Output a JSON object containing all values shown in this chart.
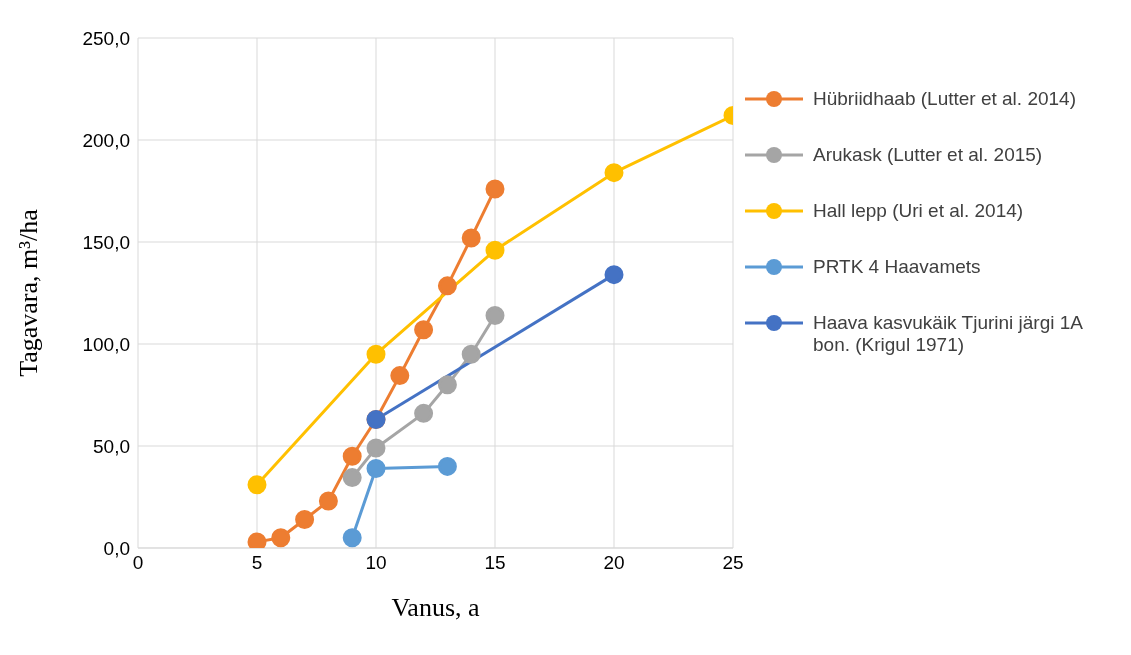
{
  "chart_data": {
    "type": "line",
    "xlabel": "Vanus, a",
    "ylabel": "Tagavara, m³/ha",
    "xlim": [
      0,
      25
    ],
    "xticks": [
      0,
      5,
      10,
      15,
      20,
      25
    ],
    "ylim": [
      0,
      250
    ],
    "yticks": [
      {
        "value": 0,
        "label": "0,0"
      },
      {
        "value": 50,
        "label": "50,0"
      },
      {
        "value": 100,
        "label": "100,0"
      },
      {
        "value": 150,
        "label": "150,0"
      },
      {
        "value": 200,
        "label": "200,0"
      },
      {
        "value": 250,
        "label": "250,0"
      }
    ],
    "grid": true,
    "legend": "right",
    "marker": "circle",
    "line_style": "solid",
    "series": [
      {
        "name": "Hübriidhaab  (Lutter et al. 2014)",
        "color": "#ed7d31",
        "x": [
          5,
          6,
          7,
          8,
          9,
          10,
          11,
          12,
          13,
          14,
          15
        ],
        "values": [
          3,
          5,
          14,
          23,
          45,
          63,
          84.5,
          107,
          128.5,
          152,
          176
        ]
      },
      {
        "name": "Arukask (Lutter et al. 2015)",
        "color": "#a5a5a5",
        "x": [
          9,
          10,
          12,
          13,
          14,
          15
        ],
        "values": [
          34.5,
          49,
          66,
          80,
          95,
          114
        ]
      },
      {
        "name": "Hall lepp (Uri et al. 2014)",
        "color": "#ffc000",
        "x": [
          5,
          10,
          15,
          20,
          25
        ],
        "values": [
          31,
          95,
          146,
          184,
          212
        ]
      },
      {
        "name": "PRTK 4 Haavamets",
        "color": "#5b9bd5",
        "x": [
          9,
          10,
          13
        ],
        "values": [
          5,
          39,
          40
        ]
      },
      {
        "name": "Haava kasvukäik Tjurini järgi 1A bon. (Krigul 1971)",
        "color": "#4472c4",
        "x": [
          10,
          20
        ],
        "values": [
          63,
          134
        ]
      }
    ]
  }
}
